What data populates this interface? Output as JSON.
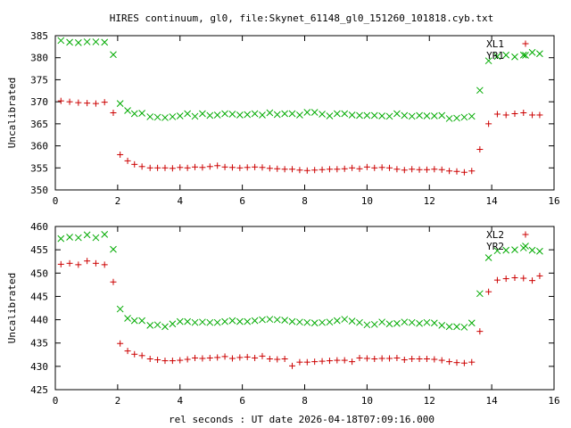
{
  "title": "HIRES continuum, gl0, file:Skynet_61148_gl0_151260_101818.cyb.txt",
  "xlabel": "rel seconds : UT date 2026-04-18T07:09:16.000",
  "colors": {
    "red": "#cc0000",
    "green": "#00aa00",
    "axis": "#000000",
    "background": "#ffffff"
  },
  "chart_data": [
    {
      "type": "scatter",
      "ylabel": "Uncalibrated",
      "xlim": [
        0,
        16
      ],
      "ylim": [
        350,
        385
      ],
      "xticks": [
        0,
        2,
        4,
        6,
        8,
        10,
        12,
        14,
        16
      ],
      "yticks": [
        350,
        355,
        360,
        365,
        370,
        375,
        380,
        385
      ],
      "series": [
        {
          "name": "XL1",
          "marker": "plus",
          "color": "#cc0000",
          "x": [
            0.18,
            0.46,
            0.74,
            1.02,
            1.3,
            1.58,
            1.86,
            2.08,
            2.32,
            2.54,
            2.78,
            3.04,
            3.28,
            3.52,
            3.76,
            4.0,
            4.24,
            4.48,
            4.72,
            4.96,
            5.2,
            5.44,
            5.68,
            5.92,
            6.16,
            6.4,
            6.64,
            6.88,
            7.12,
            7.36,
            7.6,
            7.84,
            8.08,
            8.32,
            8.56,
            8.8,
            9.04,
            9.28,
            9.52,
            9.76,
            10.0,
            10.24,
            10.48,
            10.72,
            10.96,
            11.2,
            11.44,
            11.68,
            11.92,
            12.16,
            12.4,
            12.64,
            12.88,
            13.12,
            13.36,
            13.62,
            13.9,
            14.18,
            14.46,
            14.74,
            15.02,
            15.3,
            15.54
          ],
          "y": [
            370.2,
            370.0,
            369.8,
            369.7,
            369.6,
            369.9,
            367.5,
            358.0,
            356.6,
            355.8,
            355.3,
            355.0,
            355.0,
            355.0,
            354.9,
            355.1,
            355.0,
            355.2,
            355.1,
            355.3,
            355.5,
            355.2,
            355.1,
            355.0,
            355.1,
            355.2,
            355.1,
            354.9,
            354.8,
            354.7,
            354.7,
            354.5,
            354.4,
            354.5,
            354.6,
            354.7,
            354.7,
            354.8,
            355.0,
            354.8,
            355.2,
            355.0,
            355.1,
            355.0,
            354.7,
            354.5,
            354.7,
            354.6,
            354.6,
            354.7,
            354.6,
            354.3,
            354.2,
            354.0,
            354.3,
            359.2,
            365.0,
            367.2,
            367.0,
            367.3,
            367.5,
            367.0,
            367.0
          ]
        },
        {
          "name": "YR1",
          "marker": "cross",
          "color": "#00aa00",
          "x": [
            0.18,
            0.46,
            0.74,
            1.02,
            1.3,
            1.58,
            1.86,
            2.08,
            2.32,
            2.54,
            2.78,
            3.04,
            3.28,
            3.52,
            3.76,
            4.0,
            4.24,
            4.48,
            4.72,
            4.96,
            5.2,
            5.44,
            5.68,
            5.92,
            6.16,
            6.4,
            6.64,
            6.88,
            7.12,
            7.36,
            7.6,
            7.84,
            8.08,
            8.32,
            8.56,
            8.8,
            9.04,
            9.28,
            9.52,
            9.76,
            10.0,
            10.24,
            10.48,
            10.72,
            10.96,
            11.2,
            11.44,
            11.68,
            11.92,
            12.16,
            12.4,
            12.64,
            12.88,
            13.12,
            13.36,
            13.62,
            13.9,
            14.18,
            14.46,
            14.74,
            15.02,
            15.3,
            15.54
          ],
          "y": [
            383.9,
            383.5,
            383.4,
            383.6,
            383.6,
            383.5,
            380.7,
            369.6,
            368.0,
            367.3,
            367.4,
            366.6,
            366.5,
            366.4,
            366.6,
            366.8,
            367.3,
            366.7,
            367.3,
            366.9,
            367.0,
            367.3,
            367.2,
            367.0,
            367.1,
            367.3,
            367.0,
            367.5,
            367.1,
            367.3,
            367.3,
            367.0,
            367.6,
            367.6,
            367.2,
            366.8,
            367.3,
            367.3,
            367.0,
            366.9,
            366.9,
            366.9,
            366.8,
            366.7,
            367.3,
            366.9,
            366.7,
            366.9,
            366.8,
            366.8,
            366.9,
            366.2,
            366.3,
            366.5,
            366.7,
            372.6,
            379.3,
            380.3,
            380.6,
            380.2,
            380.6,
            381.2,
            380.9
          ]
        }
      ]
    },
    {
      "type": "scatter",
      "ylabel": "Uncalibrated",
      "xlim": [
        0,
        16
      ],
      "ylim": [
        425,
        460
      ],
      "xticks": [
        0,
        2,
        4,
        6,
        8,
        10,
        12,
        14,
        16
      ],
      "yticks": [
        425,
        430,
        435,
        440,
        445,
        450,
        455,
        460
      ],
      "series": [
        {
          "name": "XL2",
          "marker": "plus",
          "color": "#cc0000",
          "x": [
            0.18,
            0.46,
            0.74,
            1.02,
            1.3,
            1.58,
            1.86,
            2.08,
            2.32,
            2.54,
            2.78,
            3.04,
            3.28,
            3.52,
            3.76,
            4.0,
            4.24,
            4.48,
            4.72,
            4.96,
            5.2,
            5.44,
            5.68,
            5.92,
            6.16,
            6.4,
            6.64,
            6.88,
            7.12,
            7.36,
            7.6,
            7.84,
            8.08,
            8.32,
            8.56,
            8.8,
            9.04,
            9.28,
            9.52,
            9.76,
            10.0,
            10.24,
            10.48,
            10.72,
            10.96,
            11.2,
            11.44,
            11.68,
            11.92,
            12.16,
            12.4,
            12.64,
            12.88,
            13.12,
            13.36,
            13.62,
            13.9,
            14.18,
            14.46,
            14.74,
            15.02,
            15.3,
            15.54
          ],
          "y": [
            451.9,
            452.1,
            451.8,
            452.6,
            452.1,
            451.8,
            448.1,
            434.9,
            433.3,
            432.6,
            432.3,
            431.6,
            431.4,
            431.2,
            431.2,
            431.3,
            431.5,
            431.8,
            431.7,
            431.8,
            431.9,
            432.1,
            431.7,
            431.9,
            432.0,
            431.8,
            432.2,
            431.6,
            431.5,
            431.6,
            430.1,
            430.9,
            430.9,
            431.0,
            431.1,
            431.2,
            431.3,
            431.3,
            431.0,
            431.8,
            431.7,
            431.6,
            431.7,
            431.7,
            431.8,
            431.4,
            431.6,
            431.6,
            431.6,
            431.5,
            431.3,
            431.0,
            430.8,
            430.7,
            430.9,
            437.5,
            446.0,
            448.5,
            448.8,
            449.0,
            448.9,
            448.4,
            449.4
          ]
        },
        {
          "name": "YR2",
          "marker": "cross",
          "color": "#00aa00",
          "x": [
            0.18,
            0.46,
            0.74,
            1.02,
            1.3,
            1.58,
            1.86,
            2.08,
            2.32,
            2.54,
            2.78,
            3.04,
            3.28,
            3.52,
            3.76,
            4.0,
            4.24,
            4.48,
            4.72,
            4.96,
            5.2,
            5.44,
            5.68,
            5.92,
            6.16,
            6.4,
            6.64,
            6.88,
            7.12,
            7.36,
            7.6,
            7.84,
            8.08,
            8.32,
            8.56,
            8.8,
            9.04,
            9.28,
            9.52,
            9.76,
            10.0,
            10.24,
            10.48,
            10.72,
            10.96,
            11.2,
            11.44,
            11.68,
            11.92,
            12.16,
            12.4,
            12.64,
            12.88,
            13.12,
            13.36,
            13.62,
            13.9,
            14.18,
            14.46,
            14.74,
            15.02,
            15.3,
            15.54
          ],
          "y": [
            457.4,
            457.7,
            457.6,
            458.2,
            457.6,
            458.3,
            455.1,
            442.3,
            440.3,
            439.8,
            439.8,
            438.8,
            438.9,
            438.5,
            439.1,
            439.6,
            439.6,
            439.4,
            439.5,
            439.4,
            439.4,
            439.6,
            439.8,
            439.6,
            439.6,
            439.8,
            440.0,
            440.1,
            440.0,
            439.9,
            439.6,
            439.5,
            439.4,
            439.3,
            439.4,
            439.5,
            439.8,
            440.1,
            439.7,
            439.4,
            438.9,
            439.0,
            439.5,
            439.1,
            439.2,
            439.5,
            439.4,
            439.2,
            439.4,
            439.3,
            438.8,
            438.5,
            438.5,
            438.4,
            439.3,
            445.6,
            453.3,
            454.8,
            454.9,
            455.0,
            455.4,
            454.9,
            454.7
          ]
        }
      ]
    }
  ]
}
